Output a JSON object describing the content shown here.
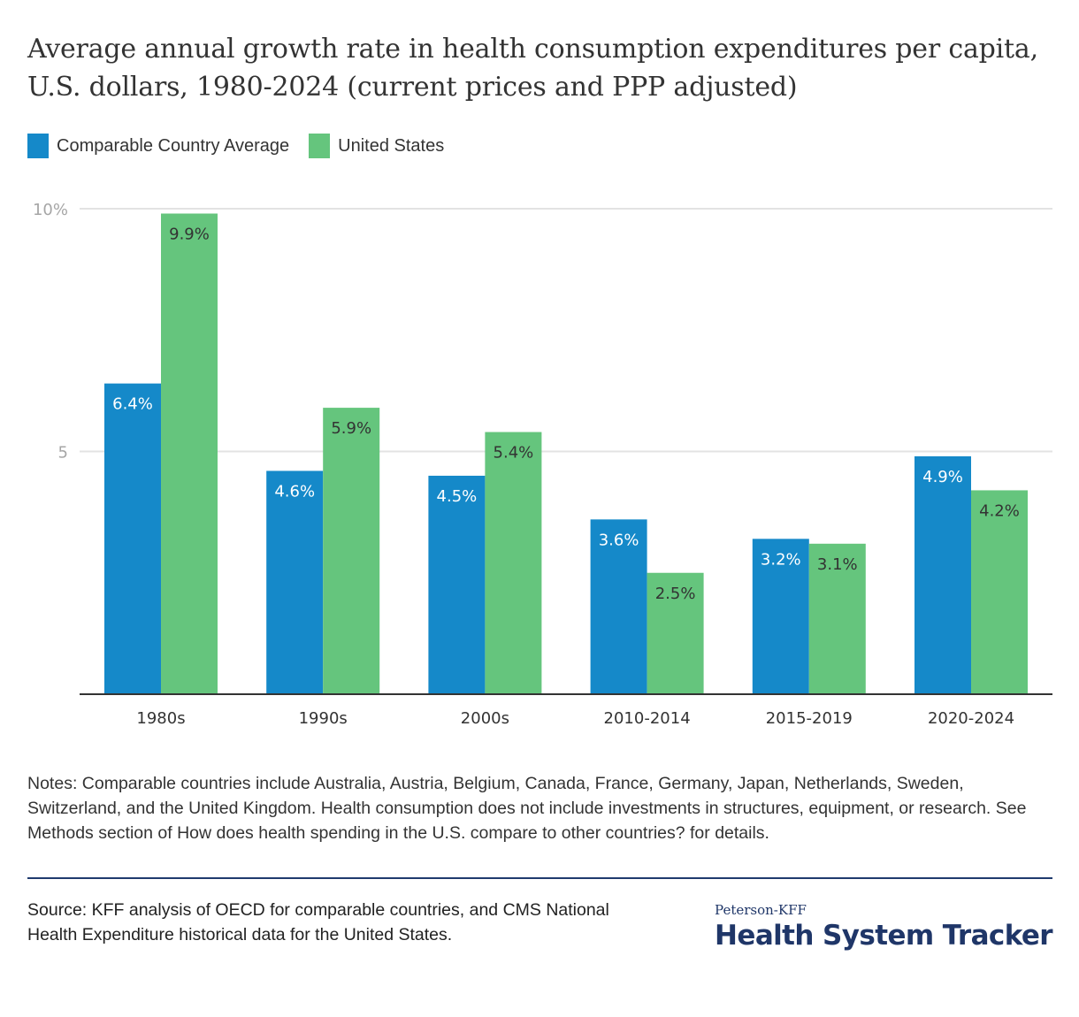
{
  "header": {
    "title": "Average annual growth rate in health consumption expenditures per capita, U.S. dollars, 1980-2024 (current prices and PPP adjusted)"
  },
  "legend": [
    {
      "label": "Comparable Country Average",
      "color": "#1589c9"
    },
    {
      "label": "United States",
      "color": "#65c57d"
    }
  ],
  "chart_data": {
    "type": "bar",
    "title": "Average annual growth rate in health consumption expenditures per capita, U.S. dollars, 1980-2024 (current prices and PPP adjusted)",
    "xlabel": "",
    "ylabel": "",
    "categories": [
      "1980s",
      "1990s",
      "2000s",
      "2010-2014",
      "2015-2019",
      "2020-2024"
    ],
    "series": [
      {
        "name": "Comparable Country Average",
        "color": "#1589c9",
        "values": [
          6.4,
          4.6,
          4.5,
          3.6,
          3.2,
          4.9
        ],
        "labels": [
          "6.4%",
          "4.6%",
          "4.5%",
          "3.6%",
          "3.2%",
          "4.9%"
        ]
      },
      {
        "name": "United States",
        "color": "#65c57d",
        "values": [
          9.9,
          5.9,
          5.4,
          2.5,
          3.1,
          4.2
        ],
        "labels": [
          "9.9%",
          "5.9%",
          "5.4%",
          "2.5%",
          "3.1%",
          "4.2%"
        ]
      }
    ],
    "ylim": [
      0,
      10
    ],
    "yticks": [
      5,
      10
    ],
    "ytick_labels": [
      "5",
      "10%"
    ],
    "grid": true,
    "legend_position": "top-left"
  },
  "footer": {
    "notes": "Notes: Comparable countries include Australia, Austria, Belgium, Canada, France, Germany, Japan, Netherlands, Sweden, Switzerland, and the United Kingdom. Health consumption does not include investments in structures, equipment, or research. See Methods section of How does health spending in the U.S. compare to other countries? for details.",
    "source": "Source: KFF analysis of OECD for comparable countries, and CMS National Health Expenditure historical data for the United States.",
    "brand_small": "Peterson-KFF",
    "brand_big": "Health System Tracker"
  }
}
